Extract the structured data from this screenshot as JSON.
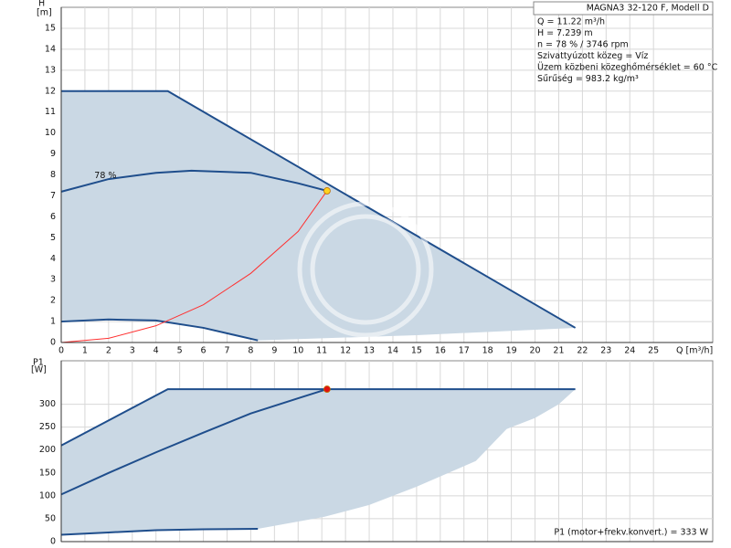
{
  "chart_data": [
    {
      "type": "line",
      "title": "MAGNA3 32-120 F, Modell D",
      "info": [
        "Q = 11.22 m³/h",
        "H = 7.239 m",
        "n = 78 % / 3746 rpm",
        "Szivattyúzott közeg = Víz",
        "Üzem közbeni közeghőmérséklet = 60 °C",
        "Sűrűség = 983.2 kg/m³"
      ],
      "y_label": "H",
      "y_unit": "[m]",
      "x_label": "Q [m³/h]",
      "curve_label": "78 %",
      "xlim": [
        0,
        27.5
      ],
      "ylim": [
        0,
        16
      ],
      "xticks": [
        0,
        1,
        2,
        3,
        4,
        5,
        6,
        7,
        8,
        9,
        10,
        11,
        12,
        13,
        14,
        15,
        16,
        17,
        18,
        19,
        20,
        21,
        22,
        23,
        24,
        25
      ],
      "yticks": [
        0,
        1,
        2,
        3,
        4,
        5,
        6,
        7,
        8,
        9,
        10,
        11,
        12,
        13,
        14,
        15
      ],
      "grid": true,
      "series": [
        {
          "kind": "area",
          "color": "#cad8e4",
          "x": [
            0,
            4.5,
            21.7,
            15,
            8.3,
            6,
            4,
            2,
            0
          ],
          "values": [
            12,
            12,
            0.7,
            0.35,
            0.1,
            0.7,
            1.05,
            1.1,
            1
          ]
        },
        {
          "kind": "line",
          "color": "#1f4e8c",
          "x": [
            0,
            4.5,
            21.7
          ],
          "values": [
            12,
            12,
            0.7
          ]
        },
        {
          "kind": "line",
          "color": "#1f4e8c",
          "x": [
            0,
            2,
            4,
            5.5,
            8,
            10,
            11.22
          ],
          "values": [
            7.2,
            7.8,
            8.1,
            8.2,
            8.1,
            7.6,
            7.239
          ]
        },
        {
          "kind": "line",
          "color": "#1f4e8c",
          "x": [
            0,
            2,
            4,
            6,
            8.3
          ],
          "values": [
            1,
            1.1,
            1.05,
            0.7,
            0.1
          ]
        },
        {
          "kind": "line",
          "color": "#ff3030",
          "x": [
            0,
            2,
            4,
            6,
            8,
            10,
            11.22
          ],
          "values": [
            0,
            0.2,
            0.8,
            1.8,
            3.3,
            5.3,
            7.239
          ]
        },
        {
          "kind": "point",
          "color": "#ffd21f",
          "x": [
            11.22
          ],
          "values": [
            7.239
          ]
        }
      ]
    },
    {
      "type": "line",
      "y_label": "P1",
      "y_unit": "[W]",
      "footer": "P1 (motor+frekv.konvert.) = 333 W",
      "xlim": [
        0,
        27.5
      ],
      "ylim": [
        0,
        395
      ],
      "yticks": [
        0,
        50,
        100,
        150,
        200,
        250,
        300
      ],
      "grid": true,
      "series": [
        {
          "kind": "area",
          "color": "#cad8e4",
          "x": [
            0,
            4.5,
            21.7,
            21,
            20,
            18.8,
            17.5,
            15,
            13,
            11.1,
            8.3,
            6,
            4,
            2,
            0
          ],
          "values": [
            210,
            333,
            333,
            300,
            270,
            246,
            176,
            120,
            80,
            54,
            28,
            27,
            25,
            20,
            15
          ]
        },
        {
          "kind": "line",
          "color": "#1f4e8c",
          "x": [
            0,
            4.5,
            21.7
          ],
          "values": [
            210,
            333,
            333
          ]
        },
        {
          "kind": "line",
          "color": "#1f4e8c",
          "x": [
            0,
            2,
            4,
            6,
            8,
            10,
            11.22
          ],
          "values": [
            103,
            150,
            195,
            238,
            280,
            313,
            333
          ]
        },
        {
          "kind": "line",
          "color": "#1f4e8c",
          "x": [
            0,
            2,
            4,
            6,
            8.3
          ],
          "values": [
            15,
            20,
            25,
            27,
            28
          ]
        },
        {
          "kind": "point",
          "color": "#e01010",
          "x": [
            11.22
          ],
          "values": [
            333
          ]
        }
      ]
    }
  ]
}
